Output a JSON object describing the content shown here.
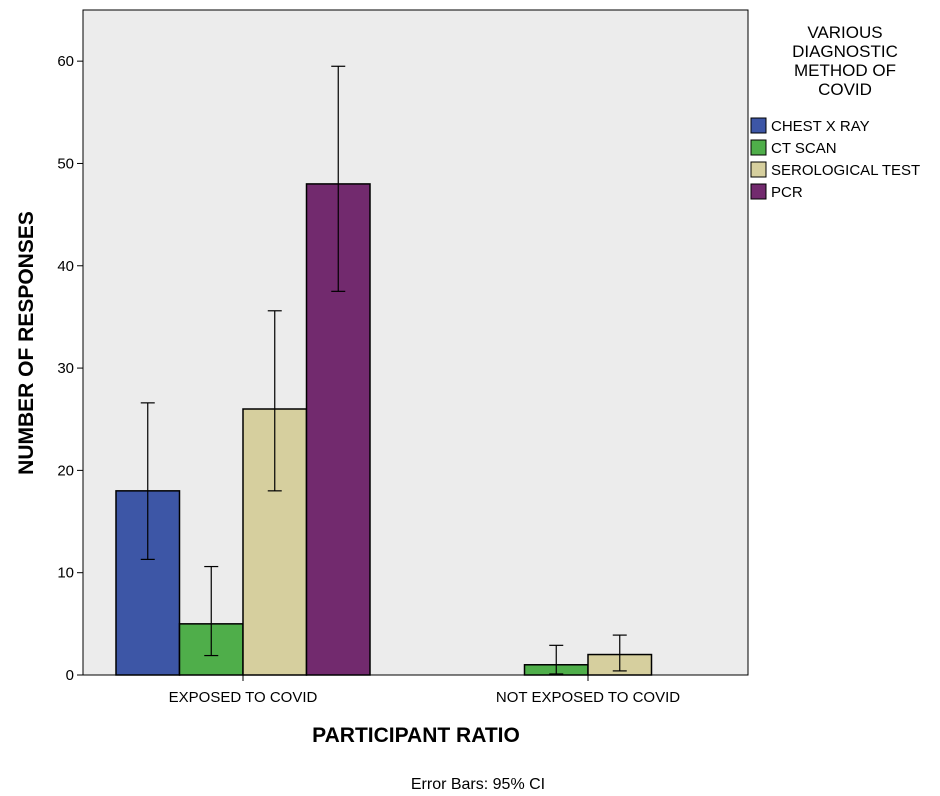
{
  "chart_data": {
    "type": "bar",
    "xlabel": "PARTICIPANT RATIO",
    "ylabel": "NUMBER OF RESPONSES",
    "ylim": [
      0,
      65
    ],
    "yticks": [
      0,
      10,
      20,
      30,
      40,
      50,
      60
    ],
    "categories": [
      "EXPOSED TO COVID",
      "NOT EXPOSED TO COVID"
    ],
    "legend_title": [
      "VARIOUS",
      "DIAGNOSTIC",
      "METHOD OF",
      "COVID"
    ],
    "legend_position": "right",
    "footnote": "Error Bars: 95% CI",
    "background": "#ececec",
    "series": [
      {
        "name": "CHEST X RAY",
        "color": "#3d56a6",
        "values": [
          18,
          null
        ],
        "ci_low": [
          11.3,
          null
        ],
        "ci_high": [
          26.6,
          null
        ]
      },
      {
        "name": "CT SCAN",
        "color": "#4fae4a",
        "values": [
          5,
          1
        ],
        "ci_low": [
          1.9,
          0.1
        ],
        "ci_high": [
          10.6,
          2.9
        ]
      },
      {
        "name": "SEROLOGICAL TEST",
        "color": "#d6cf9e",
        "values": [
          26,
          2
        ],
        "ci_low": [
          18,
          0.4
        ],
        "ci_high": [
          35.6,
          3.9
        ]
      },
      {
        "name": "PCR",
        "color": "#722a6e",
        "values": [
          48,
          null
        ],
        "ci_low": [
          37.5,
          null
        ],
        "ci_high": [
          59.5,
          null
        ]
      }
    ]
  }
}
